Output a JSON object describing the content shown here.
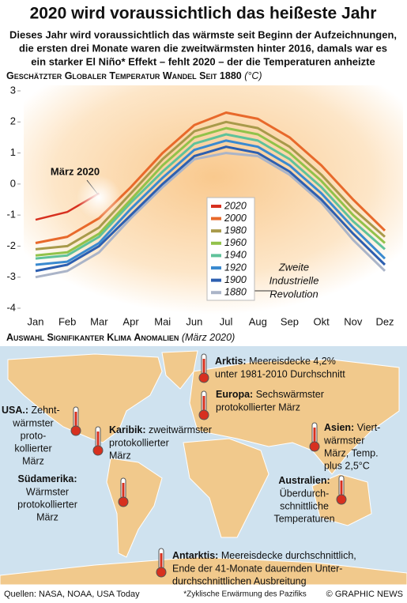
{
  "chart_data": {
    "type": "line",
    "title": "2020 wird voraussichtlich das heißeste Jahr",
    "subtitle": [
      "Dieses Jahr wird voraussichtlich das wärmste seit Beginn der Aufzeichnungen,",
      "die ersten drei Monate waren die zweitwärmsten hinter 2016, damals war es",
      "ein starker El Niño* Effekt – fehlt 2020 – der die Temperaturen anheizte"
    ],
    "chart_title": "Geschätzter Globaler Temperatur Wandel Seit 1880",
    "unit": "(°C)",
    "categories": [
      "Jan",
      "Feb",
      "Mar",
      "Apr",
      "Mai",
      "Jun",
      "Jul",
      "Aug",
      "Sep",
      "Okt",
      "Nov",
      "Dez"
    ],
    "ylim": [
      -4,
      3
    ],
    "yticks": [
      -4,
      -3,
      -2,
      -1,
      0,
      1,
      2,
      3
    ],
    "series": [
      {
        "name": "1880",
        "color": "#aab4c8",
        "values": [
          -3.0,
          -2.8,
          -2.2,
          -1.1,
          -0.1,
          0.8,
          1.0,
          0.9,
          0.3,
          -0.6,
          -1.8,
          -2.8
        ]
      },
      {
        "name": "1900",
        "color": "#2d5fb0",
        "values": [
          -2.8,
          -2.6,
          -2.0,
          -1.0,
          0.0,
          0.9,
          1.2,
          1.0,
          0.4,
          -0.5,
          -1.6,
          -2.6
        ]
      },
      {
        "name": "1920",
        "color": "#3a8ad0",
        "values": [
          -2.6,
          -2.5,
          -1.9,
          -0.8,
          0.2,
          1.1,
          1.4,
          1.2,
          0.6,
          -0.3,
          -1.4,
          -2.4
        ]
      },
      {
        "name": "1940",
        "color": "#5fc29a",
        "values": [
          -2.4,
          -2.3,
          -1.7,
          -0.6,
          0.4,
          1.3,
          1.6,
          1.4,
          0.8,
          -0.1,
          -1.2,
          -2.1
        ]
      },
      {
        "name": "1960",
        "color": "#92c24a",
        "values": [
          -2.3,
          -2.2,
          -1.6,
          -0.5,
          0.6,
          1.5,
          1.8,
          1.6,
          1.0,
          0.1,
          -1.0,
          -1.9
        ]
      },
      {
        "name": "1980",
        "color": "#a89a4a",
        "values": [
          -2.1,
          -2.0,
          -1.4,
          -0.3,
          0.8,
          1.7,
          2.0,
          1.8,
          1.2,
          0.3,
          -0.8,
          -1.7
        ]
      },
      {
        "name": "2000",
        "color": "#e8692b",
        "values": [
          -1.9,
          -1.7,
          -1.1,
          -0.1,
          1.0,
          1.9,
          2.3,
          2.1,
          1.5,
          0.6,
          -0.5,
          -1.5
        ]
      },
      {
        "name": "2020",
        "color": "#d7301f",
        "values": [
          -1.15,
          -0.9,
          -0.3,
          null,
          null,
          null,
          null,
          null,
          null,
          null,
          null,
          null
        ]
      }
    ],
    "annotations": [
      "März 2020",
      "Zweite",
      "Industrielle",
      "Revolution"
    ],
    "map_title": "Auswahl Signifikanter Klima Anomalien",
    "map_subtitle": "(März 2020)",
    "anomalies": [
      {
        "label": "Arktis:",
        "lines": [
          "Meereisdecke 4,2%",
          "unter 1981-2010 Durchschnitt"
        ]
      },
      {
        "label": "Europa:",
        "lines": [
          "Sechswärmster",
          "protokollierter März"
        ]
      },
      {
        "label": "USA.:",
        "lines": [
          "Zehnt-",
          "wärmster",
          "proto-",
          "kollierter",
          "März"
        ]
      },
      {
        "label": "Karibik:",
        "lines": [
          "zweitwärmster",
          "protokollierter",
          "März"
        ]
      },
      {
        "label": "Asien:",
        "lines": [
          "Viert-",
          "wärmster",
          "März, Temp.",
          "plus 2,5°C"
        ]
      },
      {
        "label": "Südamerika:",
        "lines": [
          "Wärmster",
          "protokollierter",
          "März"
        ]
      },
      {
        "label": "Australien:",
        "lines": [
          "Überdurch-",
          "schnittliche",
          "Temperaturen"
        ]
      },
      {
        "label": "Antarktis:",
        "lines": [
          "Meereisdecke durchschnittlich,",
          "Ende der 41-Monate dauernden Unter-",
          "durchschnittlichen Ausbreitung"
        ]
      }
    ],
    "sources": "Quellen: NASA, NOAA, USA Today",
    "footnote": "*Zyklische Erwärmung des Pazifiks",
    "credit": "© GRAPHIC NEWS"
  }
}
